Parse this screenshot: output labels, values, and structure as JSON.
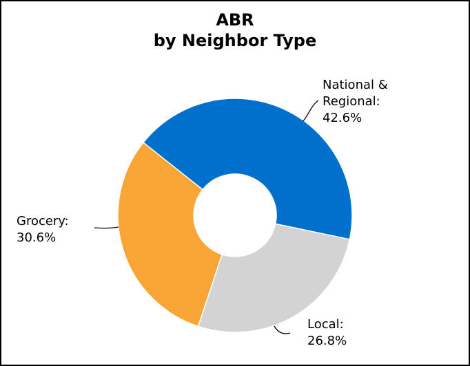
{
  "chart_data": {
    "type": "pie",
    "variant": "donut",
    "title_lines": [
      "ABR",
      "by Neighbor Type"
    ],
    "categories": [
      "National & Regional",
      "Local",
      "Grocery"
    ],
    "values": [
      42.6,
      26.8,
      30.6
    ],
    "unit": "%",
    "colors": [
      "#0070CD",
      "#D3D3D3",
      "#F8A535"
    ],
    "labels": [
      {
        "lines": [
          "National &",
          "Regional:",
          "42.6%"
        ]
      },
      {
        "lines": [
          "Local:",
          "26.8%"
        ]
      },
      {
        "lines": [
          "Grocery:",
          "30.6%"
        ]
      }
    ],
    "legend": "none"
  }
}
